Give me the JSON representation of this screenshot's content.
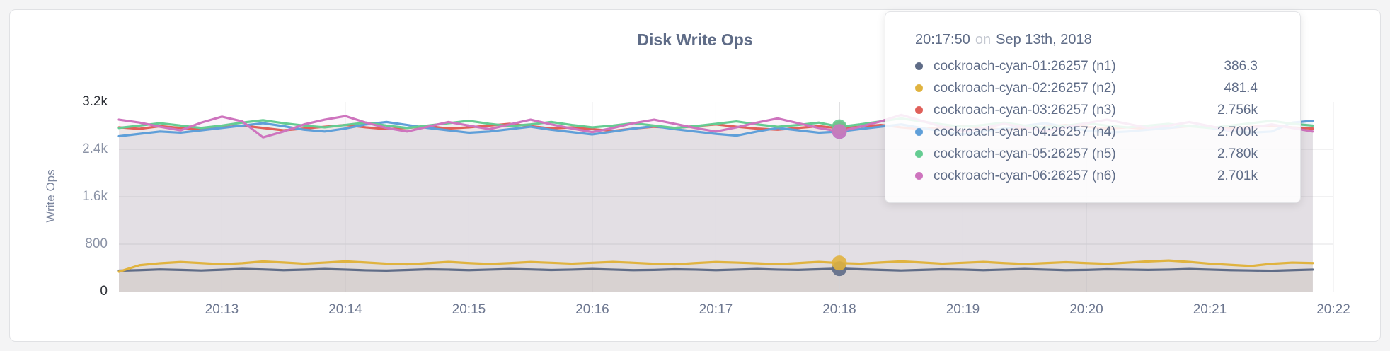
{
  "card": {
    "title": "Disk Write Ops"
  },
  "y_axis": {
    "label": "Write Ops",
    "tick_values": [
      0,
      800,
      1600,
      2400,
      3200
    ],
    "tick_labels": [
      "0",
      "800",
      "1.6k",
      "2.4k",
      "3.2k"
    ]
  },
  "x_axis": {
    "tick_labels": [
      "20:13",
      "20:14",
      "20:15",
      "20:16",
      "20:17",
      "20:18",
      "20:19",
      "20:20",
      "20:21",
      "20:22"
    ],
    "tick_seconds": [
      50,
      110,
      170,
      230,
      290,
      350,
      410,
      470,
      530,
      590
    ]
  },
  "tooltip": {
    "time": "20:17:50",
    "separator": "on",
    "date": "Sep 13th, 2018",
    "rows": [
      {
        "label": "cockroach-cyan-01:26257 (n1)",
        "value": "386.3",
        "color": "#5f6c87"
      },
      {
        "label": "cockroach-cyan-02:26257 (n2)",
        "value": "481.4",
        "color": "#e0b33f"
      },
      {
        "label": "cockroach-cyan-03:26257 (n3)",
        "value": "2.756k",
        "color": "#e0605a"
      },
      {
        "label": "cockroach-cyan-04:26257 (n4)",
        "value": "2.700k",
        "color": "#5f9fd9"
      },
      {
        "label": "cockroach-cyan-05:26257 (n5)",
        "value": "2.780k",
        "color": "#65cc92"
      },
      {
        "label": "cockroach-cyan-06:26257 (n6)",
        "value": "2.701k",
        "color": "#ce74be"
      }
    ]
  },
  "chart_data": {
    "type": "line",
    "title": "Disk Write Ops",
    "xlabel": "",
    "ylabel": "Write Ops",
    "ylim": [
      0,
      3200
    ],
    "grid": true,
    "legend_position": "tooltip",
    "x_start": "20:12:10",
    "x_step_seconds": 10,
    "x_domain_seconds": 590,
    "hover_index": 35,
    "hover_time": "20:17:50",
    "series": [
      {
        "name": "cockroach-cyan-01:26257 (n1)",
        "color": "#5f6c87",
        "hover_value": 386.3,
        "values": [
          352,
          361,
          374,
          366,
          356,
          369,
          383,
          374,
          361,
          370,
          381,
          371,
          359,
          354,
          364,
          376,
          371,
          361,
          371,
          381,
          374,
          364,
          371,
          381,
          371,
          361,
          366,
          376,
          371,
          361,
          371,
          381,
          371,
          366,
          376,
          386.3,
          376,
          366,
          356,
          366,
          376,
          371,
          361,
          371,
          381,
          371,
          361,
          366,
          376,
          371,
          366,
          371,
          381,
          371,
          361,
          356,
          351,
          361,
          371
        ]
      },
      {
        "name": "cockroach-cyan-02:26257 (n2)",
        "color": "#e0b33f",
        "hover_value": 481.4,
        "values": [
          335,
          445,
          478,
          499,
          481,
          461,
          479,
          508,
          491,
          471,
          489,
          509,
          491,
          471,
          459,
          479,
          501,
          481,
          466,
          481,
          499,
          486,
          471,
          486,
          501,
          486,
          469,
          459,
          481,
          499,
          489,
          476,
          461,
          481,
          501,
          481.4,
          471,
          491,
          509,
          491,
          471,
          486,
          501,
          481,
          466,
          481,
          496,
          481,
          469,
          489,
          509,
          524,
          501,
          471,
          451,
          431,
          469,
          489,
          481
        ]
      },
      {
        "name": "cockroach-cyan-03:26257 (n3)",
        "color": "#e0605a",
        "hover_value": 2756,
        "values": [
          2771,
          2746,
          2791,
          2761,
          2731,
          2771,
          2801,
          2761,
          2721,
          2751,
          2781,
          2811,
          2771,
          2741,
          2761,
          2791,
          2751,
          2771,
          2801,
          2831,
          2791,
          2751,
          2771,
          2741,
          2711,
          2751,
          2781,
          2761,
          2791,
          2821,
          2781,
          2751,
          2731,
          2761,
          2791,
          2756,
          2781,
          2811,
          2771,
          2741,
          2771,
          2801,
          2761,
          2731,
          2751,
          2781,
          2811,
          2781,
          2751,
          2771,
          2741,
          2761,
          2791,
          2771,
          2751,
          2781,
          2801,
          2771,
          2751
        ]
      },
      {
        "name": "cockroach-cyan-04:26257 (n4)",
        "color": "#5f9fd9",
        "hover_value": 2700,
        "values": [
          2621,
          2661,
          2701,
          2681,
          2721,
          2761,
          2801,
          2841,
          2791,
          2731,
          2701,
          2751,
          2821,
          2861,
          2811,
          2761,
          2721,
          2681,
          2701,
          2741,
          2781,
          2731,
          2691,
          2651,
          2701,
          2751,
          2791,
          2741,
          2701,
          2661,
          2631,
          2701,
          2761,
          2721,
          2681,
          2700,
          2741,
          2781,
          2821,
          2761,
          2701,
          2651,
          2701,
          2751,
          2801,
          2841,
          2781,
          2721,
          2681,
          2701,
          2731,
          2761,
          2801,
          2761,
          2711,
          2681,
          2701,
          2851,
          2881
        ]
      },
      {
        "name": "cockroach-cyan-05:26257 (n5)",
        "color": "#65cc92",
        "hover_value": 2780,
        "values": [
          2761,
          2801,
          2841,
          2801,
          2761,
          2801,
          2851,
          2891,
          2841,
          2801,
          2771,
          2811,
          2851,
          2801,
          2761,
          2801,
          2841,
          2881,
          2831,
          2791,
          2821,
          2861,
          2811,
          2771,
          2801,
          2841,
          2801,
          2761,
          2791,
          2831,
          2871,
          2821,
          2781,
          2811,
          2851,
          2780,
          2821,
          2871,
          2921,
          2871,
          2821,
          2781,
          2811,
          2851,
          2801,
          2771,
          2801,
          2841,
          2801,
          2771,
          2801,
          2831,
          2791,
          2761,
          2801,
          2841,
          2881,
          2831,
          2801
        ]
      },
      {
        "name": "cockroach-cyan-06:26257 (n6)",
        "color": "#ce74be",
        "hover_value": 2701,
        "values": [
          2901,
          2851,
          2781,
          2721,
          2851,
          2951,
          2871,
          2601,
          2701,
          2821,
          2901,
          2961,
          2851,
          2761,
          2701,
          2781,
          2861,
          2801,
          2741,
          2821,
          2901,
          2821,
          2751,
          2691,
          2761,
          2841,
          2901,
          2831,
          2761,
          2701,
          2771,
          2851,
          2921,
          2841,
          2761,
          2701,
          2781,
          2871,
          2981,
          2881,
          2781,
          2701,
          2761,
          2831,
          2771,
          2711,
          2771,
          2841,
          2901,
          2831,
          2761,
          2801,
          2861,
          2791,
          2721,
          2761,
          2821,
          2761,
          2701
        ]
      }
    ],
    "colors": {
      "grid_horizontal": "#e3e3e6",
      "grid_vertical": "#e9e9eb",
      "hover_guideline": "#d4d4d6",
      "area_fill_opacity": 0.08
    }
  }
}
